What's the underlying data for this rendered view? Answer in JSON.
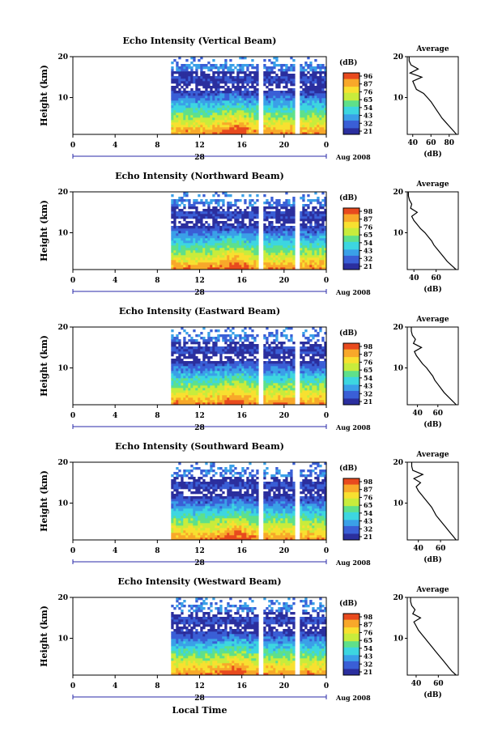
{
  "chart_data": [
    {
      "type": "heatmap",
      "title": "Echo Intensity (Vertical Beam)",
      "ylabel": "Height (km)",
      "y_ticks": [
        "20",
        "10"
      ],
      "ylim": [
        1,
        20
      ],
      "x_ticks": [
        "0",
        "4",
        "8",
        "12",
        "16",
        "20",
        "0"
      ],
      "xlim": [
        0,
        24
      ],
      "date_label": "28",
      "date_suffix": "Aug 2008",
      "data_start_hour": 9.3,
      "gaps": [
        [
          17.5,
          17.9
        ],
        [
          21.0,
          21.4
        ]
      ],
      "colorbar": {
        "unit": "(dB)",
        "labels": [
          "96",
          "87",
          "76",
          "65",
          "54",
          "43",
          "32",
          "21"
        ]
      },
      "profile": {
        "title": "Average",
        "xlabel": "(dB)",
        "x_ticks": [
          "40",
          "60",
          "80"
        ],
        "xlim": [
          34,
          90
        ],
        "y_ticks": [
          "20",
          "10"
        ],
        "heights": [
          1,
          2,
          3,
          4,
          5,
          6,
          7,
          8,
          9,
          10,
          11,
          12,
          13,
          14,
          15,
          16,
          17,
          18,
          19,
          20
        ],
        "values": [
          88,
          84,
          80,
          76,
          72,
          69,
          66,
          63,
          60,
          56,
          52,
          44,
          42,
          40,
          50,
          37,
          46,
          38,
          36,
          36
        ]
      }
    },
    {
      "type": "heatmap",
      "title": "Echo Intensity (Northward Beam)",
      "ylabel": "Height (km)",
      "y_ticks": [
        "20",
        "10"
      ],
      "ylim": [
        1,
        20
      ],
      "x_ticks": [
        "0",
        "4",
        "8",
        "12",
        "16",
        "20",
        "0"
      ],
      "xlim": [
        0,
        24
      ],
      "date_label": "28",
      "date_suffix": "Aug 2008",
      "data_start_hour": 9.3,
      "gaps": [
        [
          17.5,
          17.9
        ],
        [
          21.0,
          21.4
        ]
      ],
      "colorbar": {
        "unit": "(dB)",
        "labels": [
          "98",
          "87",
          "76",
          "65",
          "54",
          "43",
          "32",
          "21"
        ]
      },
      "profile": {
        "title": "Average",
        "xlabel": "(dB)",
        "x_ticks": [
          "40",
          "60"
        ],
        "xlim": [
          34,
          80
        ],
        "y_ticks": [
          "20",
          "10"
        ],
        "heights": [
          1,
          2,
          3,
          4,
          5,
          6,
          7,
          8,
          9,
          10,
          11,
          12,
          13,
          14,
          15,
          16,
          17,
          18,
          19,
          20
        ],
        "values": [
          78,
          74,
          70,
          67,
          64,
          61,
          58,
          56,
          53,
          50,
          46,
          43,
          40,
          38,
          43,
          37,
          38,
          36,
          35,
          35
        ]
      }
    },
    {
      "type": "heatmap",
      "title": "Echo Intensity (Eastward Beam)",
      "ylabel": "Height (km)",
      "y_ticks": [
        "20",
        "10"
      ],
      "ylim": [
        1,
        20
      ],
      "x_ticks": [
        "0",
        "4",
        "8",
        "12",
        "16",
        "20",
        "0"
      ],
      "xlim": [
        0,
        24
      ],
      "date_label": "28",
      "date_suffix": "Aug 2008",
      "data_start_hour": 9.3,
      "gaps": [
        [
          17.5,
          17.9
        ],
        [
          21.0,
          21.4
        ]
      ],
      "colorbar": {
        "unit": "(dB)",
        "labels": [
          "98",
          "87",
          "76",
          "65",
          "54",
          "43",
          "32",
          "21"
        ]
      },
      "profile": {
        "title": "Average",
        "xlabel": "(dB)",
        "x_ticks": [
          "40",
          "60"
        ],
        "xlim": [
          30,
          80
        ],
        "y_ticks": [
          "20",
          "10"
        ],
        "heights": [
          1,
          2,
          3,
          4,
          5,
          6,
          7,
          8,
          9,
          10,
          11,
          12,
          13,
          14,
          15,
          16,
          17,
          18,
          19,
          20
        ],
        "values": [
          78,
          74,
          70,
          66,
          63,
          60,
          57,
          55,
          52,
          49,
          45,
          42,
          39,
          37,
          44,
          36,
          38,
          35,
          34,
          34
        ]
      }
    },
    {
      "type": "heatmap",
      "title": "Echo Intensity (Southward Beam)",
      "ylabel": "Height (km)",
      "y_ticks": [
        "20",
        "10"
      ],
      "ylim": [
        1,
        20
      ],
      "x_ticks": [
        "0",
        "4",
        "8",
        "12",
        "16",
        "20",
        "0"
      ],
      "xlim": [
        0,
        24
      ],
      "date_label": "28",
      "date_suffix": "Aug 2008",
      "data_start_hour": 9.3,
      "gaps": [
        [
          17.5,
          17.9
        ],
        [
          21.0,
          21.4
        ]
      ],
      "colorbar": {
        "unit": "(dB)",
        "labels": [
          "98",
          "87",
          "76",
          "65",
          "54",
          "43",
          "32",
          "21"
        ]
      },
      "profile": {
        "title": "Average",
        "xlabel": "(dB)",
        "x_ticks": [
          "40",
          "60"
        ],
        "xlim": [
          30,
          76
        ],
        "y_ticks": [
          "20",
          "10"
        ],
        "heights": [
          1,
          2,
          3,
          4,
          5,
          6,
          7,
          8,
          9,
          10,
          11,
          12,
          13,
          14,
          15,
          16,
          17,
          18,
          19,
          20
        ],
        "values": [
          74,
          71,
          68,
          65,
          62,
          59,
          56,
          54,
          52,
          49,
          46,
          43,
          40,
          38,
          42,
          36,
          44,
          35,
          34,
          34
        ]
      }
    },
    {
      "type": "heatmap",
      "title": "Echo Intensity (Westward Beam)",
      "ylabel": "Height (km)",
      "y_ticks": [
        "20",
        "10"
      ],
      "ylim": [
        1,
        20
      ],
      "x_ticks": [
        "0",
        "4",
        "8",
        "12",
        "16",
        "20",
        "0"
      ],
      "xlim": [
        0,
        24
      ],
      "date_label": "28",
      "date_suffix": "Aug 2008",
      "xlabel": "Local Time",
      "data_start_hour": 9.3,
      "gaps": [
        [
          17.5,
          17.9
        ],
        [
          21.0,
          21.4
        ]
      ],
      "colorbar": {
        "unit": "(dB)",
        "labels": [
          "98",
          "87",
          "76",
          "65",
          "54",
          "43",
          "32",
          "21"
        ]
      },
      "profile": {
        "title": "Average",
        "xlabel": "(dB)",
        "x_ticks": [
          "40",
          "60"
        ],
        "xlim": [
          32,
          78
        ],
        "y_ticks": [
          "20",
          "10"
        ],
        "heights": [
          1,
          2,
          3,
          4,
          5,
          6,
          7,
          8,
          9,
          10,
          11,
          12,
          13,
          14,
          15,
          16,
          17,
          18,
          19,
          20
        ],
        "values": [
          76,
          72,
          69,
          66,
          63,
          60,
          57,
          54,
          51,
          48,
          45,
          42,
          40,
          38,
          44,
          37,
          39,
          36,
          35,
          35
        ]
      }
    }
  ],
  "colors": {
    "colormap": [
      "#2b2f9e",
      "#3a5fd6",
      "#3aa0e8",
      "#3dd6e0",
      "#5fe08a",
      "#c8ec3c",
      "#f8e030",
      "#f8a82a",
      "#e84a1e"
    ]
  }
}
